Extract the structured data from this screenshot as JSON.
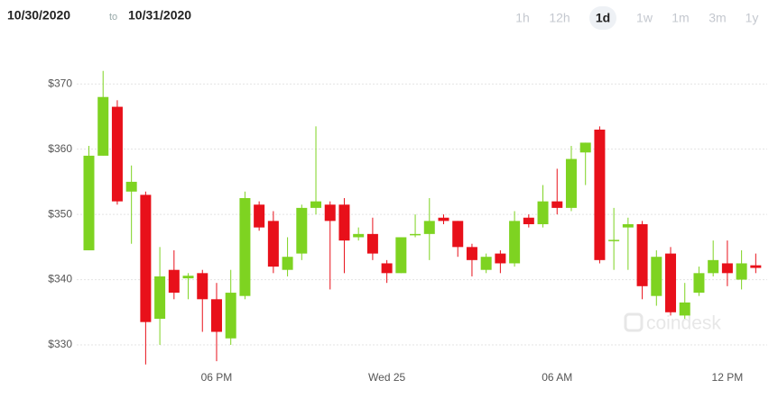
{
  "header": {
    "from": "10/30/2020",
    "to_word": "to",
    "to": "10/31/2020",
    "ranges": [
      "1h",
      "12h",
      "1d",
      "1w",
      "1m",
      "3m",
      "1y"
    ],
    "selected_range": 2
  },
  "watermark": "coindesk",
  "chart_data": {
    "type": "candlestick",
    "categories": [
      null,
      null,
      null,
      null,
      null,
      null,
      null,
      null,
      null,
      "06 PM",
      null,
      null,
      null,
      null,
      null,
      null,
      null,
      null,
      null,
      null,
      null,
      "Wed 25",
      null,
      null,
      null,
      null,
      null,
      null,
      null,
      null,
      null,
      null,
      null,
      "06 AM",
      null,
      null,
      null,
      null,
      null,
      null,
      null,
      null,
      null,
      null,
      null,
      "12 PM",
      null,
      null
    ],
    "open": [
      344.5,
      359,
      366.5,
      353.5,
      353,
      334,
      341.5,
      340.2,
      341,
      337,
      331,
      337.5,
      351.5,
      349,
      341.5,
      344,
      351,
      351.5,
      351.5,
      346.5,
      347,
      342.5,
      341,
      346.8,
      347,
      349.5,
      349,
      345,
      341.5,
      344,
      342.5,
      349.5,
      348.5,
      352,
      351,
      359.5,
      363,
      345.9,
      348,
      348.5,
      337.5,
      344,
      334.5,
      338,
      341,
      342.5,
      340,
      342.2
    ],
    "high": [
      360.5,
      372,
      367.5,
      357.5,
      353.5,
      345,
      344.5,
      341,
      341.5,
      339.5,
      341.5,
      353.5,
      352,
      350.5,
      346.5,
      351.5,
      363.5,
      352,
      352.5,
      348,
      349.5,
      343,
      346.5,
      350,
      352.5,
      350,
      349,
      345.5,
      344,
      344.5,
      350.5,
      350,
      354.5,
      357,
      360.5,
      361,
      363.5,
      351,
      349.5,
      349,
      344.5,
      345,
      339.5,
      342,
      346,
      346,
      344.5,
      344
    ],
    "low": [
      344.5,
      359,
      351.5,
      345.5,
      327,
      330,
      337,
      337,
      332,
      327.5,
      330,
      337,
      347.5,
      341,
      340.5,
      343,
      350,
      338.5,
      341,
      346,
      343,
      339.5,
      341,
      346.5,
      343,
      348.5,
      343.5,
      340.5,
      341,
      341,
      342,
      348,
      348,
      350,
      350.5,
      354.5,
      342.5,
      341.5,
      341.5,
      337,
      336,
      334.5,
      334,
      337.5,
      340.5,
      339,
      338.5,
      341
    ],
    "close": [
      359,
      368,
      352,
      355,
      333.5,
      340.5,
      338,
      340.6,
      337,
      332,
      338,
      352.5,
      348,
      342,
      343.5,
      351,
      352,
      349,
      346,
      347,
      344,
      341,
      346.5,
      347,
      349,
      349,
      345,
      343,
      343.5,
      342.5,
      349,
      348.5,
      352,
      351,
      358.5,
      361,
      343,
      346.1,
      348.5,
      339,
      343.5,
      335,
      336.5,
      341,
      343,
      341,
      342.5,
      341.8
    ],
    "up_color": "#7ed321",
    "down_color": "#e8101a",
    "ylim": [
      326,
      375
    ],
    "yticks": [
      {
        "value": 330,
        "label": "$330"
      },
      {
        "value": 340,
        "label": "$340"
      },
      {
        "value": 350,
        "label": "$350"
      },
      {
        "value": 360,
        "label": "$360"
      },
      {
        "value": 370,
        "label": "$370"
      }
    ],
    "grid": true
  }
}
